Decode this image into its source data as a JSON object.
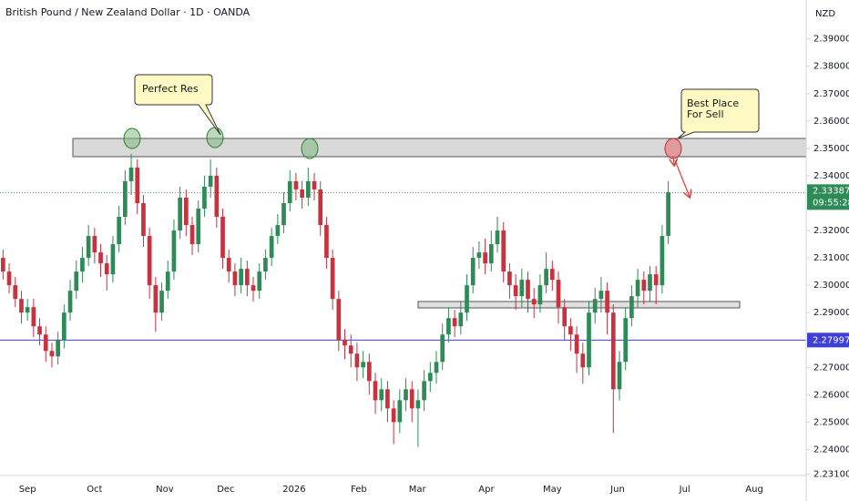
{
  "chart_data": {
    "type": "candlestick",
    "title": "British Pound / New Zealand Dollar · 1D · OANDA",
    "currency": "NZD",
    "up_color": "#2e8b57",
    "down_color": "#c8313e",
    "xlim": [
      -0.5,
      131.6
    ],
    "ylim": [
      2.2305,
      2.4042
    ],
    "xticks": [
      {
        "value": 4,
        "label": "Sep"
      },
      {
        "value": 15,
        "label": "Oct"
      },
      {
        "value": 26.5,
        "label": "Nov"
      },
      {
        "value": 36.5,
        "label": "Dec"
      },
      {
        "value": 47.7,
        "label": "2026"
      },
      {
        "value": 58.3,
        "label": "Feb"
      },
      {
        "value": 67.9,
        "label": "Mar"
      },
      {
        "value": 79.2,
        "label": "Apr"
      },
      {
        "value": 90,
        "label": "May"
      },
      {
        "value": 100.7,
        "label": "Jun"
      },
      {
        "value": 111.7,
        "label": "Jul"
      },
      {
        "value": 123.1,
        "label": "Aug"
      }
    ],
    "yticks": [
      {
        "value": 2.231,
        "label": "2.23100"
      },
      {
        "value": 2.24,
        "label": "2.24000"
      },
      {
        "value": 2.25,
        "label": "2.25000"
      },
      {
        "value": 2.26,
        "label": "2.26000"
      },
      {
        "value": 2.27,
        "label": "2.27000"
      },
      {
        "value": 2.29,
        "label": "2.29000"
      },
      {
        "value": 2.3,
        "label": "2.30000"
      },
      {
        "value": 2.31,
        "label": "2.31000"
      },
      {
        "value": 2.32,
        "label": "2.32000"
      },
      {
        "value": 2.34,
        "label": "2.34000"
      },
      {
        "value": 2.35,
        "label": "2.35000"
      },
      {
        "value": 2.36,
        "label": "2.36000"
      },
      {
        "value": 2.37,
        "label": "2.37000"
      },
      {
        "value": 2.38,
        "label": "2.38000"
      },
      {
        "value": 2.39,
        "label": "2.39000"
      }
    ],
    "last_price": 2.33387,
    "countdown": "09:55:28",
    "level_line": 2.27997,
    "annotations": [
      "Perfect Res",
      "Best Place For Sell"
    ],
    "candles": [
      [
        2.31,
        2.313,
        2.302,
        2.305
      ],
      [
        2.305,
        2.308,
        2.297,
        2.3
      ],
      [
        2.3,
        2.303,
        2.292,
        2.295
      ],
      [
        2.295,
        2.298,
        2.286,
        2.29
      ],
      [
        2.29,
        2.295,
        2.287,
        2.292
      ],
      [
        2.292,
        2.295,
        2.281,
        2.285
      ],
      [
        2.285,
        2.288,
        2.278,
        2.282
      ],
      [
        2.282,
        2.285,
        2.272,
        2.276
      ],
      [
        2.276,
        2.279,
        2.27,
        2.274
      ],
      [
        2.274,
        2.283,
        2.271,
        2.28
      ],
      [
        2.28,
        2.293,
        2.277,
        2.29
      ],
      [
        2.29,
        2.302,
        2.287,
        2.298
      ],
      [
        2.298,
        2.309,
        2.295,
        2.305
      ],
      [
        2.305,
        2.314,
        2.301,
        2.31
      ],
      [
        2.31,
        2.322,
        2.307,
        2.318
      ],
      [
        2.318,
        2.321,
        2.308,
        2.312
      ],
      [
        2.312,
        2.315,
        2.303,
        2.308
      ],
      [
        2.308,
        2.311,
        2.298,
        2.304
      ],
      [
        2.304,
        2.318,
        2.301,
        2.315
      ],
      [
        2.315,
        2.329,
        2.312,
        2.325
      ],
      [
        2.325,
        2.342,
        2.322,
        2.338
      ],
      [
        2.338,
        2.348,
        2.333,
        2.343
      ],
      [
        2.343,
        2.346,
        2.326,
        2.33
      ],
      [
        2.33,
        2.333,
        2.314,
        2.318
      ],
      [
        2.318,
        2.321,
        2.295,
        2.3
      ],
      [
        2.3,
        2.303,
        2.283,
        2.29
      ],
      [
        2.29,
        2.301,
        2.287,
        2.298
      ],
      [
        2.298,
        2.309,
        2.295,
        2.305
      ],
      [
        2.305,
        2.324,
        2.302,
        2.32
      ],
      [
        2.32,
        2.336,
        2.317,
        2.332
      ],
      [
        2.332,
        2.335,
        2.318,
        2.322
      ],
      [
        2.322,
        2.325,
        2.311,
        2.315
      ],
      [
        2.315,
        2.331,
        2.312,
        2.328
      ],
      [
        2.328,
        2.34,
        2.325,
        2.336
      ],
      [
        2.336,
        2.346,
        2.332,
        2.34
      ],
      [
        2.34,
        2.343,
        2.321,
        2.325
      ],
      [
        2.325,
        2.328,
        2.306,
        2.31
      ],
      [
        2.31,
        2.313,
        2.301,
        2.305
      ],
      [
        2.305,
        2.308,
        2.296,
        2.3
      ],
      [
        2.3,
        2.31,
        2.297,
        2.306
      ],
      [
        2.306,
        2.309,
        2.296,
        2.3
      ],
      [
        2.3,
        2.303,
        2.294,
        2.298
      ],
      [
        2.298,
        2.308,
        2.295,
        2.305
      ],
      [
        2.305,
        2.313,
        2.302,
        2.31
      ],
      [
        2.31,
        2.321,
        2.307,
        2.318
      ],
      [
        2.318,
        2.326,
        2.315,
        2.322
      ],
      [
        2.322,
        2.334,
        2.319,
        2.33
      ],
      [
        2.33,
        2.342,
        2.327,
        2.338
      ],
      [
        2.338,
        2.341,
        2.331,
        2.335
      ],
      [
        2.335,
        2.338,
        2.328,
        2.332
      ],
      [
        2.332,
        2.343,
        2.329,
        2.338
      ],
      [
        2.338,
        2.341,
        2.331,
        2.335
      ],
      [
        2.335,
        2.338,
        2.318,
        2.322
      ],
      [
        2.322,
        2.325,
        2.306,
        2.31
      ],
      [
        2.31,
        2.313,
        2.291,
        2.295
      ],
      [
        2.295,
        2.298,
        2.276,
        2.28
      ],
      [
        2.28,
        2.284,
        2.273,
        2.278
      ],
      [
        2.278,
        2.282,
        2.27,
        2.275
      ],
      [
        2.275,
        2.279,
        2.265,
        2.27
      ],
      [
        2.27,
        2.276,
        2.266,
        2.272
      ],
      [
        2.272,
        2.275,
        2.26,
        2.265
      ],
      [
        2.265,
        2.268,
        2.253,
        2.258
      ],
      [
        2.258,
        2.266,
        2.254,
        2.262
      ],
      [
        2.262,
        2.265,
        2.25,
        2.255
      ],
      [
        2.255,
        2.258,
        2.242,
        2.25
      ],
      [
        2.25,
        2.262,
        2.246,
        2.258
      ],
      [
        2.258,
        2.266,
        2.254,
        2.262
      ],
      [
        2.262,
        2.265,
        2.25,
        2.255
      ],
      [
        2.255,
        2.262,
        2.241,
        2.258
      ],
      [
        2.258,
        2.269,
        2.254,
        2.265
      ],
      [
        2.265,
        2.272,
        2.261,
        2.268
      ],
      [
        2.268,
        2.276,
        2.264,
        2.272
      ],
      [
        2.272,
        2.286,
        2.269,
        2.282
      ],
      [
        2.282,
        2.292,
        2.279,
        2.288
      ],
      [
        2.288,
        2.291,
        2.281,
        2.285
      ],
      [
        2.285,
        2.294,
        2.282,
        2.29
      ],
      [
        2.29,
        2.304,
        2.287,
        2.3
      ],
      [
        2.3,
        2.314,
        2.297,
        2.31
      ],
      [
        2.31,
        2.316,
        2.306,
        2.312
      ],
      [
        2.312,
        2.317,
        2.304,
        2.308
      ],
      [
        2.308,
        2.32,
        2.305,
        2.315
      ],
      [
        2.315,
        2.325,
        2.312,
        2.32
      ],
      [
        2.32,
        2.323,
        2.301,
        2.305
      ],
      [
        2.305,
        2.308,
        2.295,
        2.3
      ],
      [
        2.3,
        2.304,
        2.291,
        2.296
      ],
      [
        2.296,
        2.306,
        2.292,
        2.302
      ],
      [
        2.302,
        2.305,
        2.29,
        2.295
      ],
      [
        2.295,
        2.299,
        2.288,
        2.293
      ],
      [
        2.293,
        2.304,
        2.29,
        2.3
      ],
      [
        2.3,
        2.312,
        2.297,
        2.306
      ],
      [
        2.306,
        2.309,
        2.298,
        2.302
      ],
      [
        2.302,
        2.305,
        2.286,
        2.292
      ],
      [
        2.292,
        2.295,
        2.28,
        2.285
      ],
      [
        2.285,
        2.288,
        2.276,
        2.282
      ],
      [
        2.282,
        2.285,
        2.268,
        2.275
      ],
      [
        2.275,
        2.279,
        2.264,
        2.27
      ],
      [
        2.27,
        2.294,
        2.267,
        2.29
      ],
      [
        2.29,
        2.299,
        2.286,
        2.295
      ],
      [
        2.295,
        2.303,
        2.29,
        2.298
      ],
      [
        2.298,
        2.301,
        2.282,
        2.29
      ],
      [
        2.29,
        2.293,
        2.246,
        2.262
      ],
      [
        2.262,
        2.276,
        2.258,
        2.272
      ],
      [
        2.272,
        2.292,
        2.269,
        2.288
      ],
      [
        2.288,
        2.3,
        2.285,
        2.296
      ],
      [
        2.296,
        2.306,
        2.292,
        2.302
      ],
      [
        2.302,
        2.305,
        2.293,
        2.298
      ],
      [
        2.298,
        2.307,
        2.294,
        2.304
      ],
      [
        2.304,
        2.307,
        2.293,
        2.3
      ],
      [
        2.3,
        2.322,
        2.297,
        2.318
      ],
      [
        2.318,
        2.338,
        2.315,
        2.334
      ]
    ]
  }
}
